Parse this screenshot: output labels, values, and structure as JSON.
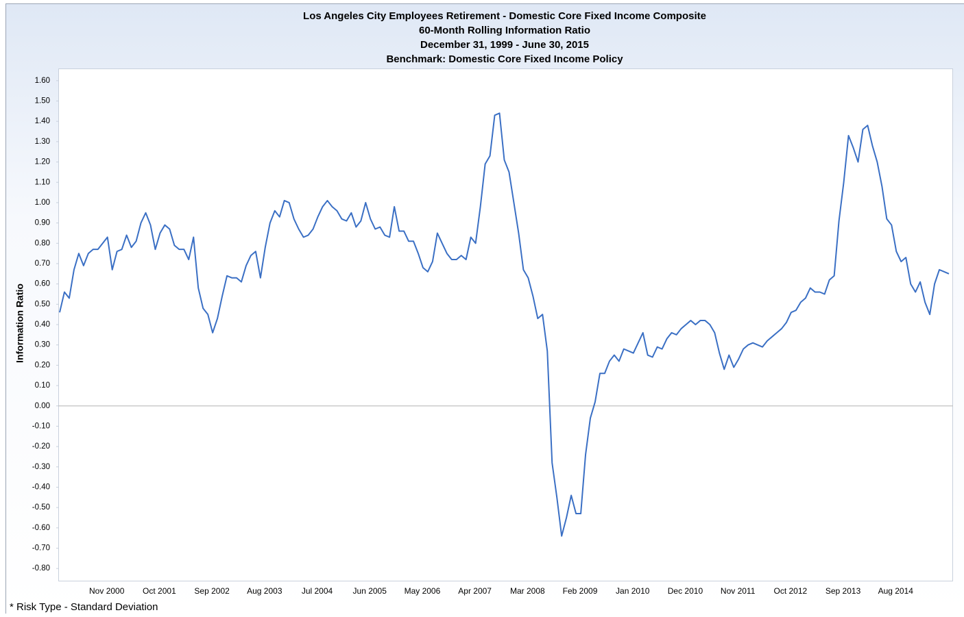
{
  "chart_data": {
    "type": "line",
    "title": "Los Angeles City Employees Retirement - Domestic Core Fixed Income Composite",
    "subtitle": "60-Month Rolling Information Ratio",
    "date_range": "December 31, 1999 - June 30, 2015",
    "benchmark": "Benchmark: Domestic Core Fixed Income Policy",
    "y_label": "Information Ratio",
    "footnote": "* Risk Type - Standard Deviation",
    "categories": [
      null,
      null,
      null,
      null,
      null,
      null,
      null,
      null,
      null,
      null,
      null,
      "Nov 2000",
      null,
      null,
      null,
      null,
      null,
      null,
      null,
      null,
      null,
      null,
      "Oct 2001",
      null,
      null,
      null,
      null,
      null,
      null,
      null,
      null,
      null,
      null,
      "Sep 2002",
      null,
      null,
      null,
      null,
      null,
      null,
      null,
      null,
      null,
      null,
      "Aug 2003",
      null,
      null,
      null,
      null,
      null,
      null,
      null,
      null,
      null,
      null,
      "Jul 2004",
      null,
      null,
      null,
      null,
      null,
      null,
      null,
      null,
      null,
      null,
      "Jun 2005",
      null,
      null,
      null,
      null,
      null,
      null,
      null,
      null,
      null,
      null,
      "May 2006",
      null,
      null,
      null,
      null,
      null,
      null,
      null,
      null,
      null,
      null,
      "Apr 2007",
      null,
      null,
      null,
      null,
      null,
      null,
      null,
      null,
      null,
      null,
      "Mar 2008",
      null,
      null,
      null,
      null,
      null,
      null,
      null,
      null,
      null,
      null,
      "Feb 2009",
      null,
      null,
      null,
      null,
      null,
      null,
      null,
      null,
      null,
      null,
      "Jan 2010",
      null,
      null,
      null,
      null,
      null,
      null,
      null,
      null,
      null,
      null,
      "Dec 2010",
      null,
      null,
      null,
      null,
      null,
      null,
      null,
      null,
      null,
      null,
      "Nov 2011",
      null,
      null,
      null,
      null,
      null,
      null,
      null,
      null,
      null,
      null,
      "Oct 2012",
      null,
      null,
      null,
      null,
      null,
      null,
      null,
      null,
      null,
      null,
      "Sep 2013",
      null,
      null,
      null,
      null,
      null,
      null,
      null,
      null,
      null,
      null,
      "Aug 2014",
      null,
      null,
      null,
      null,
      null,
      null,
      null,
      null,
      null,
      null
    ],
    "series": [
      {
        "name": "Domestic Core Fixed Income Composite",
        "color": "#3a6fc4",
        "values": [
          0.46,
          0.56,
          0.53,
          0.67,
          0.75,
          0.69,
          0.75,
          0.77,
          0.77,
          0.8,
          0.83,
          0.67,
          0.76,
          0.77,
          0.84,
          0.78,
          0.81,
          0.9,
          0.95,
          0.89,
          0.77,
          0.85,
          0.89,
          0.87,
          0.79,
          0.77,
          0.77,
          0.72,
          0.83,
          0.58,
          0.48,
          0.45,
          0.36,
          0.43,
          0.54,
          0.64,
          0.63,
          0.63,
          0.61,
          0.69,
          0.74,
          0.76,
          0.63,
          0.78,
          0.9,
          0.96,
          0.93,
          1.01,
          1.0,
          0.92,
          0.87,
          0.83,
          0.84,
          0.87,
          0.93,
          0.98,
          1.01,
          0.98,
          0.96,
          0.92,
          0.91,
          0.95,
          0.88,
          0.91,
          1.0,
          0.92,
          0.87,
          0.88,
          0.84,
          0.83,
          0.98,
          0.86,
          0.86,
          0.81,
          0.81,
          0.75,
          0.68,
          0.66,
          0.71,
          0.85,
          0.8,
          0.75,
          0.72,
          0.72,
          0.74,
          0.72,
          0.83,
          0.8,
          0.98,
          1.19,
          1.23,
          1.43,
          1.44,
          1.21,
          1.15,
          1.0,
          0.85,
          0.67,
          0.63,
          0.54,
          0.43,
          0.45,
          0.27,
          -0.28,
          -0.45,
          -0.64,
          -0.55,
          -0.44,
          -0.53,
          -0.53,
          -0.24,
          -0.06,
          0.02,
          0.16,
          0.16,
          0.22,
          0.25,
          0.22,
          0.28,
          0.27,
          0.26,
          0.31,
          0.36,
          0.25,
          0.24,
          0.29,
          0.28,
          0.33,
          0.36,
          0.35,
          0.38,
          0.4,
          0.42,
          0.4,
          0.42,
          0.42,
          0.4,
          0.36,
          0.26,
          0.18,
          0.25,
          0.19,
          0.23,
          0.28,
          0.3,
          0.31,
          0.3,
          0.29,
          0.32,
          0.34,
          0.36,
          0.38,
          0.41,
          0.46,
          0.47,
          0.51,
          0.53,
          0.58,
          0.56,
          0.56,
          0.55,
          0.62,
          0.64,
          0.91,
          1.1,
          1.33,
          1.27,
          1.2,
          1.36,
          1.38,
          1.28,
          1.2,
          1.08,
          0.92,
          0.89,
          0.76,
          0.71,
          0.73,
          0.6,
          0.56,
          0.61,
          0.51,
          0.45,
          0.6,
          0.67,
          0.66,
          0.65
        ]
      }
    ],
    "ylim": [
      -0.86,
      1.66
    ],
    "yticks": [
      {
        "value": -0.8,
        "label": "-0.80"
      },
      {
        "value": -0.7,
        "label": "-0.70"
      },
      {
        "value": -0.6,
        "label": "-0.60"
      },
      {
        "value": -0.5,
        "label": "-0.50"
      },
      {
        "value": -0.4,
        "label": "-0.40"
      },
      {
        "value": -0.3,
        "label": "-0.30"
      },
      {
        "value": -0.2,
        "label": "-0.20"
      },
      {
        "value": -0.1,
        "label": "-0.10"
      },
      {
        "value": 0,
        "label": "0.00"
      },
      {
        "value": 0.1,
        "label": "0.10"
      },
      {
        "value": 0.2,
        "label": "0.20"
      },
      {
        "value": 0.3,
        "label": "0.30"
      },
      {
        "value": 0.4,
        "label": "0.40"
      },
      {
        "value": 0.5,
        "label": "0.50"
      },
      {
        "value": 0.6,
        "label": "0.60"
      },
      {
        "value": 0.7,
        "label": "0.70"
      },
      {
        "value": 0.8,
        "label": "0.80"
      },
      {
        "value": 0.9,
        "label": "0.90"
      },
      {
        "value": 1,
        "label": "1.00"
      },
      {
        "value": 1.1,
        "label": "1.10"
      },
      {
        "value": 1.2,
        "label": "1.20"
      },
      {
        "value": 1.3,
        "label": "1.30"
      },
      {
        "value": 1.4,
        "label": "1.40"
      },
      {
        "value": 1.5,
        "label": "1.50"
      },
      {
        "value": 1.6,
        "label": "1.60"
      }
    ],
    "zero_line": true
  }
}
